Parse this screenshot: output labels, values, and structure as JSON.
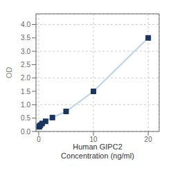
{
  "chart_data": {
    "type": "line",
    "xlabel": "Human GIPC2\nConcentration (ng/ml)",
    "ylabel": "OD",
    "x": [
      0.078,
      0.156,
      0.313,
      0.625,
      1.25,
      2.5,
      5,
      10,
      20
    ],
    "series": [
      {
        "type": "line",
        "color": "#b8d4ea",
        "values": [
          0.175,
          0.2,
          0.24,
          0.3,
          0.38,
          0.52,
          0.75,
          1.5,
          3.5
        ]
      },
      {
        "type": "scatter",
        "color": "#1a3460",
        "marker": "square",
        "values": [
          0.175,
          0.2,
          0.24,
          0.3,
          0.38,
          0.52,
          0.75,
          1.5,
          3.5
        ]
      }
    ],
    "xlim": [
      -0.5,
      22
    ],
    "ylim": [
      0,
      4.4
    ],
    "xticks": [
      0,
      10,
      20
    ],
    "yticks": [
      {
        "value": 0,
        "label": "0.0"
      },
      0.5,
      {
        "value": 1.0,
        "label": "1.0"
      },
      1.5,
      {
        "value": 2.0,
        "label": "2.0"
      },
      2.5,
      {
        "value": 3.0,
        "label": "3.0"
      },
      3.5,
      {
        "value": 4.0,
        "label": "4.0"
      }
    ],
    "grid": true
  }
}
